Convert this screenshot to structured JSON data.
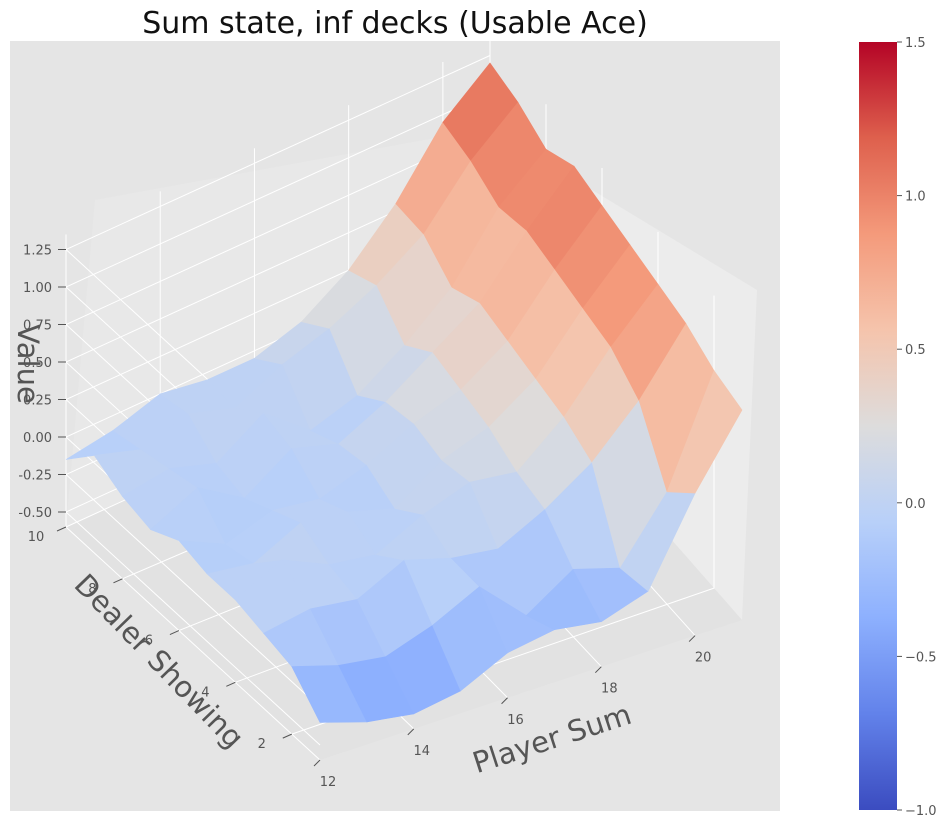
{
  "chart_data": {
    "type": "surface3d",
    "title": "Sum state, inf decks (Usable Ace)",
    "xlabel": "Player Sum",
    "ylabel": "Dealer Showing",
    "zlabel": "Value",
    "x": [
      12,
      13,
      14,
      15,
      16,
      17,
      18,
      19,
      20,
      21
    ],
    "y": [
      1,
      2,
      3,
      4,
      5,
      6,
      7,
      8,
      9,
      10
    ],
    "x_ticks": [
      12,
      14,
      16,
      18,
      20
    ],
    "y_ticks": [
      2,
      4,
      6,
      8,
      10
    ],
    "z_ticks": [
      "-0.50",
      "-0.25",
      "0.00",
      "0.25",
      "0.50",
      "0.75",
      "1.00",
      "1.25"
    ],
    "z": [
      [
        -0.35,
        -0.45,
        -0.5,
        -0.45,
        -0.3,
        -0.25,
        -0.3,
        -0.2,
        0.35,
        0.8
      ],
      [
        -0.15,
        -0.25,
        -0.3,
        -0.2,
        -0.05,
        -0.35,
        -0.15,
        -0.25,
        0.15,
        0.85
      ],
      [
        -0.1,
        -0.05,
        -0.1,
        0.05,
        -0.05,
        -0.1,
        0.05,
        0.25,
        0.55,
        0.95
      ],
      [
        -0.05,
        0.1,
        -0.05,
        -0.1,
        0.05,
        0.15,
        0.1,
        0.35,
        0.7,
        1.0
      ],
      [
        -0.05,
        -0.1,
        0.05,
        0.0,
        -0.1,
        0.1,
        0.2,
        0.4,
        0.75,
        1.05
      ],
      [
        0.0,
        -0.15,
        -0.05,
        -0.1,
        0.0,
        0.15,
        0.25,
        0.45,
        0.8,
        1.1
      ],
      [
        -0.1,
        0.05,
        -0.15,
        0.05,
        -0.05,
        0.1,
        0.3,
        0.5,
        0.85,
        1.15
      ],
      [
        -0.05,
        0.0,
        -0.1,
        0.1,
        -0.15,
        -0.05,
        0.15,
        0.4,
        0.8,
        1.05
      ],
      [
        0.05,
        -0.05,
        0.05,
        -0.05,
        0.1,
        0.2,
        0.35,
        0.55,
        0.9,
        1.15
      ],
      [
        -0.15,
        -0.1,
        0.0,
        -0.05,
        -0.05,
        0.05,
        0.25,
        0.55,
        0.95,
        1.2
      ]
    ],
    "colormap": "coolwarm",
    "colorbar": {
      "range": [
        -1.0,
        1.5
      ],
      "ticks": [
        "−1.0",
        "−0.5",
        "0.0",
        "0.5",
        "1.0",
        "1.5"
      ]
    },
    "pane_color": "#e5e5e5",
    "grid": true
  }
}
